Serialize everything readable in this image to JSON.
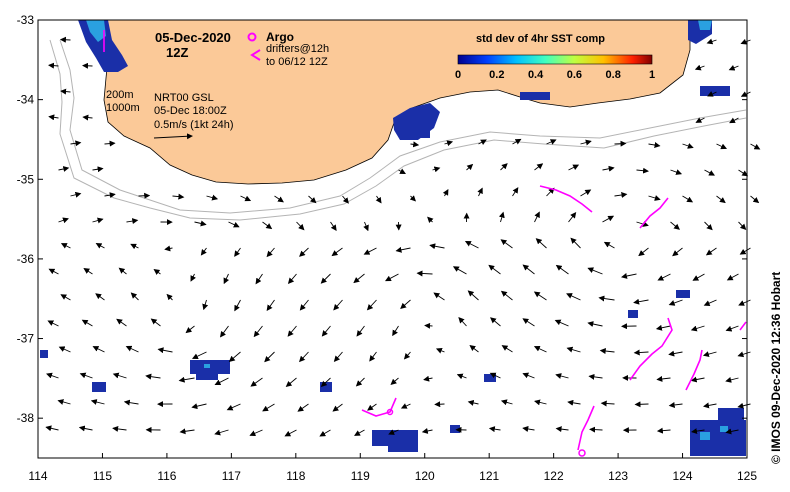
{
  "map": {
    "date_label": "05-Dec-2020",
    "time_label": "12Z",
    "argo_label": "Argo",
    "drifters_line1": "drifters@12h",
    "drifters_line2": "to 06/12 12Z",
    "contour_200": "200m",
    "contour_1000": "1000m",
    "model_line1": "NRT00 GSL",
    "model_line2": "05-Dec 18:00Z",
    "scale_label": "0.5m/s (1kt 24h)",
    "colorbar_title": "std dev of 4hr SST comp",
    "colorbar_ticks": [
      "0",
      "0.2",
      "0.4",
      "0.6",
      "0.8",
      "1"
    ],
    "credit": "© IMOS 09-Dec-2020 12:36 Hobart",
    "x_ticks": [
      "114",
      "115",
      "116",
      "117",
      "118",
      "119",
      "120",
      "121",
      "122",
      "123",
      "124",
      "125"
    ],
    "y_ticks": [
      "-33",
      "-34",
      "-35",
      "-36",
      "-37",
      "-38"
    ],
    "lon_range": [
      114,
      125
    ],
    "lat_range": [
      -38.5,
      -33
    ],
    "colors": {
      "land": "#fbc998",
      "drifter": "#ff00ff",
      "contour": "#b4b4b4",
      "sst_low": "#1a2fa8",
      "sst_mid": "#2aa0e0"
    }
  }
}
